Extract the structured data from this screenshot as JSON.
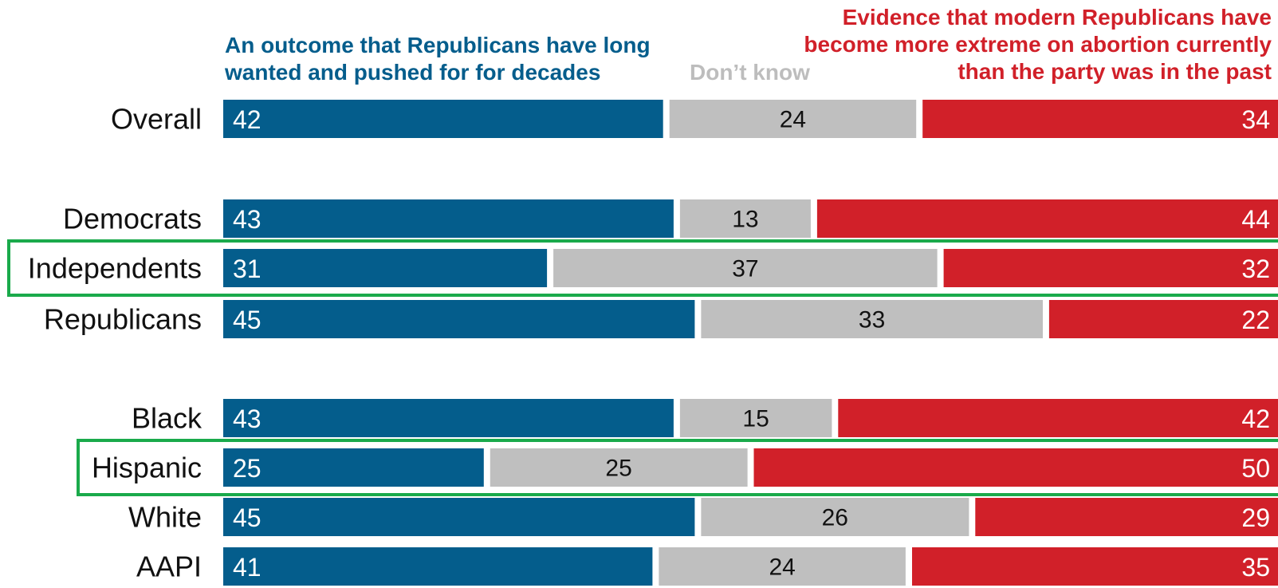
{
  "colors": {
    "blue": "#045d8c",
    "gray": "#bfbfbf",
    "red": "#d12029",
    "highlight": "#1aaa4b"
  },
  "legend": {
    "blue": "An outcome that Republicans have long wanted and pushed for for decades",
    "gray": "Don’t know",
    "red": "Evidence that modern Republicans have become more extreme on abortion currently than the party was in the past"
  },
  "chart_data": {
    "type": "bar",
    "stacked": true,
    "orientation": "horizontal",
    "categories": [
      "Overall",
      "Democrats",
      "Independents",
      "Republicans",
      "Black",
      "Hispanic",
      "White",
      "AAPI"
    ],
    "series": [
      {
        "name": "An outcome that Republicans have long wanted and pushed for for decades",
        "values": [
          42,
          43,
          31,
          45,
          43,
          25,
          45,
          41
        ]
      },
      {
        "name": "Don’t know",
        "values": [
          24,
          13,
          37,
          33,
          15,
          25,
          26,
          24
        ]
      },
      {
        "name": "Evidence that modern Republicans have become more extreme on abortion currently than the party was in the past",
        "values": [
          34,
          44,
          32,
          22,
          42,
          50,
          29,
          35
        ]
      }
    ],
    "highlighted": [
      "Independents",
      "Hispanic"
    ],
    "xlim": [
      0,
      100
    ]
  }
}
